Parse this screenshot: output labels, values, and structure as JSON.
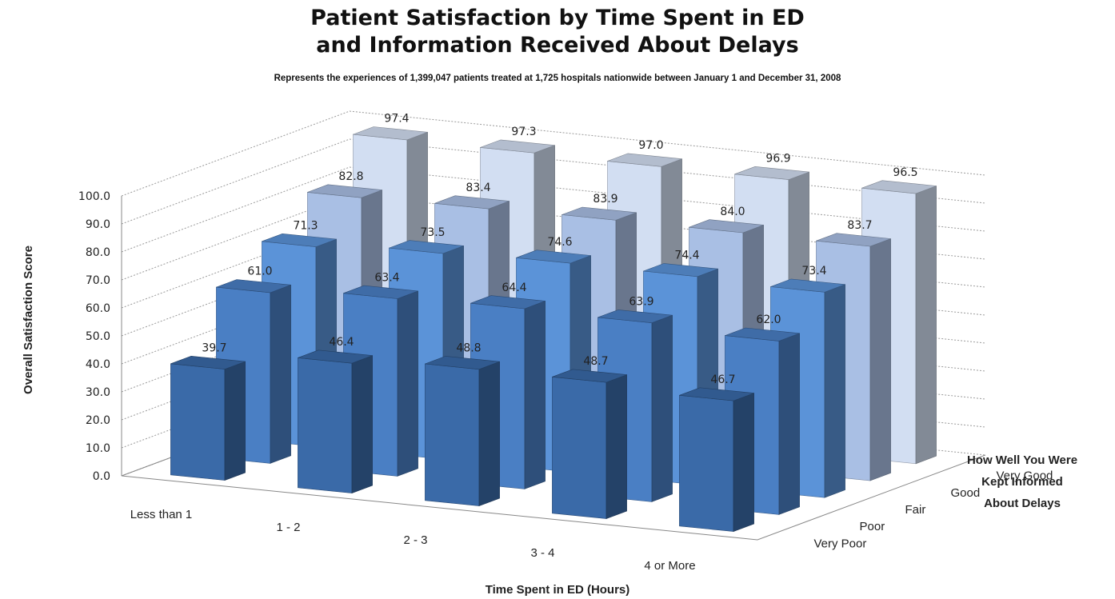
{
  "chart_data": {
    "type": "bar",
    "title": [
      "Patient Satisfaction by Time Spent in ED",
      "and Information Received About Delays"
    ],
    "subtitle": "Represents the experiences of 1,399,047 patients treated at 1,725 hospitals nationwide between January 1 and December 31, 2008",
    "xlabel": "Time Spent in ED (Hours)",
    "ylabel": "Overall Satisfaction Score",
    "zlabel": [
      "How Well You Were",
      "Kept Informed",
      "About Delays"
    ],
    "categories": [
      "Less than 1",
      "1 - 2",
      "2 - 3",
      "3 - 4",
      "4 or More"
    ],
    "ylim": [
      0,
      100
    ],
    "yticks": [
      "0.0",
      "10.0",
      "20.0",
      "30.0",
      "40.0",
      "50.0",
      "60.0",
      "70.0",
      "80.0",
      "90.0",
      "100.0"
    ],
    "series": [
      {
        "name": "Very Poor",
        "values": [
          "39.7",
          "46.4",
          "48.8",
          "48.7",
          "46.7"
        ],
        "color": "#3a6aa8"
      },
      {
        "name": "Poor",
        "values": [
          "61.0",
          "63.4",
          "64.4",
          "63.9",
          "62.0"
        ],
        "color": "#4a7fc4"
      },
      {
        "name": "Fair",
        "values": [
          "71.3",
          "73.5",
          "74.6",
          "74.4",
          "73.4"
        ],
        "color": "#5b93d8"
      },
      {
        "name": "Good",
        "values": [
          "82.8",
          "83.4",
          "83.9",
          "84.0",
          "83.7"
        ],
        "color": "#a9bfe4"
      },
      {
        "name": "Very Good",
        "values": [
          "97.4",
          "97.3",
          "97.0",
          "96.9",
          "96.5"
        ],
        "color": "#d2def2"
      }
    ]
  }
}
